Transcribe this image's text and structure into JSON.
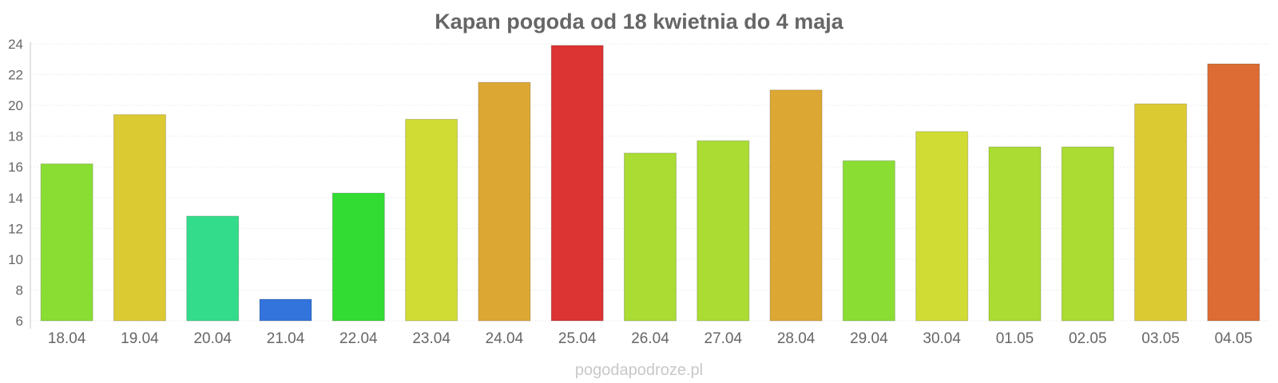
{
  "chart_data": {
    "type": "bar",
    "title": "Kapan pogoda od 18 kwietnia do 4 maja",
    "xlabel": "",
    "ylabel": "",
    "ylim": [
      6,
      24
    ],
    "yticks": [
      6,
      8,
      10,
      12,
      14,
      16,
      18,
      20,
      22,
      24
    ],
    "grid": true,
    "categories": [
      "18.04",
      "19.04",
      "20.04",
      "21.04",
      "22.04",
      "23.04",
      "24.04",
      "25.04",
      "26.04",
      "27.04",
      "28.04",
      "29.04",
      "30.04",
      "01.05",
      "02.05",
      "03.05",
      "04.05"
    ],
    "values": [
      16.2,
      19.4,
      12.8,
      7.4,
      14.3,
      19.1,
      21.5,
      23.9,
      16.9,
      17.7,
      21.0,
      16.4,
      18.3,
      17.3,
      17.3,
      20.1,
      22.7
    ],
    "colors": [
      "#8ade33",
      "#dcca33",
      "#33dc8a",
      "#3374dc",
      "#33dc33",
      "#d0dc33",
      "#dca833",
      "#dc3333",
      "#aadc33",
      "#aadc33",
      "#dca833",
      "#8ade33",
      "#d0dc33",
      "#aadc33",
      "#aadc33",
      "#dcca33",
      "#dc6c33"
    ]
  },
  "watermark": "pogodapodroze.pl"
}
